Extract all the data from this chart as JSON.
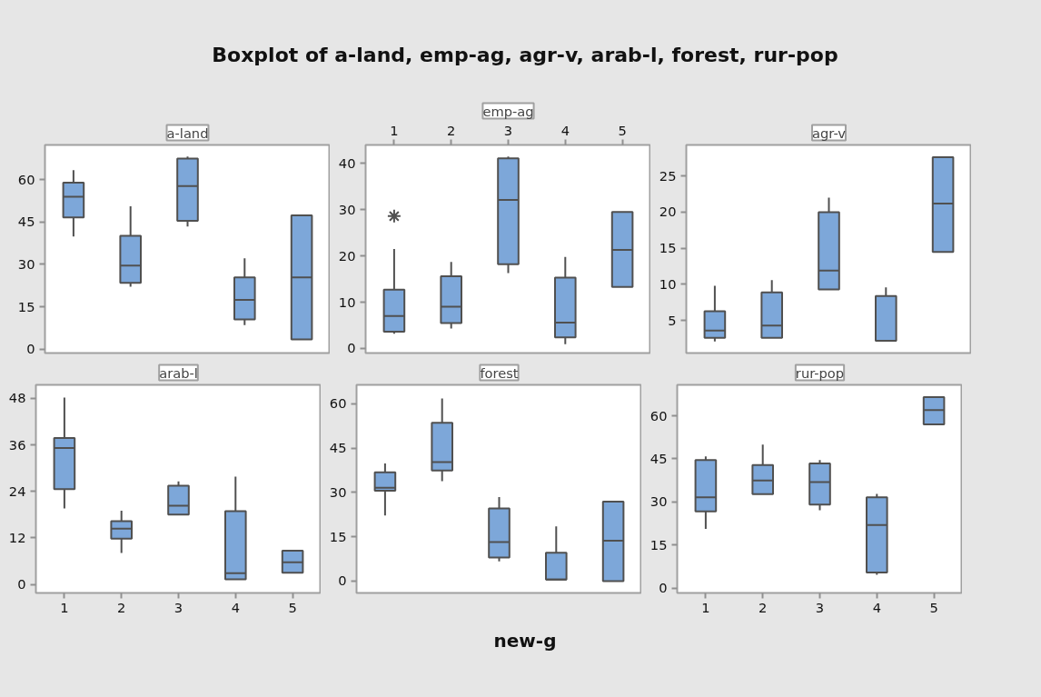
{
  "chart_data": [
    {
      "type": "box",
      "title": "a-land",
      "annotations": [
        "Boxplot of a-land, emp-ag, agr-v, arab-l, forest, rur-pop"
      ],
      "categories": [
        "1",
        "2",
        "3",
        "4",
        "5"
      ],
      "ylim": [
        -1.3,
        72.2
      ],
      "yticks": [
        0,
        15,
        30,
        45,
        60
      ],
      "tick_labels": "y",
      "color": "#7da7d9",
      "boxes": [
        {
          "low": 39.9,
          "q1": 46.6,
          "median": 53.9,
          "q3": 58.9,
          "high": 63.3
        },
        {
          "low": 22.1,
          "q1": 23.5,
          "median": 29.6,
          "q3": 40.1,
          "high": 50.5
        },
        {
          "low": 43.4,
          "q1": 45.4,
          "median": 57.7,
          "q3": 67.4,
          "high": 68.1
        },
        {
          "low": 8.6,
          "q1": 10.6,
          "median": 17.5,
          "q3": 25.4,
          "high": 32.2
        },
        {
          "low": 3.5,
          "q1": 3.5,
          "median": 25.4,
          "q3": 47.3,
          "high": 47.3
        }
      ]
    },
    {
      "type": "box",
      "title": "emp-ag",
      "categories": [
        "1",
        "2",
        "3",
        "4",
        "5"
      ],
      "ylim": [
        -1.0,
        44.0
      ],
      "yticks": [
        0,
        10,
        20,
        30,
        40
      ],
      "tick_labels": [
        "x2",
        "y"
      ],
      "color": "#7da7d9",
      "boxes": [
        {
          "low": 3.2,
          "q1": 3.6,
          "median": 7.0,
          "q3": 12.7,
          "high": 21.5,
          "outliers": [
            28.6
          ]
        },
        {
          "low": 4.3,
          "q1": 5.5,
          "median": 9.0,
          "q3": 15.6,
          "high": 18.7
        },
        {
          "low": 16.3,
          "q1": 18.2,
          "median": 32.1,
          "q3": 41.1,
          "high": 41.5
        },
        {
          "low": 0.9,
          "q1": 2.4,
          "median": 5.6,
          "q3": 15.3,
          "high": 19.8
        },
        {
          "low": 13.3,
          "q1": 13.3,
          "median": 21.3,
          "q3": 29.5,
          "high": 29.5
        }
      ]
    },
    {
      "type": "box",
      "title": "agr-v",
      "categories": [
        "1",
        "2",
        "3",
        "4",
        "5"
      ],
      "ylim": [
        0.5,
        29.3
      ],
      "yticks": [
        5,
        10,
        15,
        20,
        25
      ],
      "tick_labels": "y",
      "color": "#7da7d9",
      "boxes": [
        {
          "low": 2.1,
          "q1": 2.6,
          "median": 3.6,
          "q3": 6.3,
          "high": 9.8
        },
        {
          "low": 2.6,
          "q1": 2.6,
          "median": 4.3,
          "q3": 8.9,
          "high": 10.6
        },
        {
          "low": 9.3,
          "q1": 9.3,
          "median": 11.9,
          "q3": 20.0,
          "high": 22.0
        },
        {
          "low": 2.2,
          "q1": 2.2,
          "median": 2.2,
          "q3": 8.4,
          "high": 9.6
        },
        {
          "low": 14.5,
          "q1": 14.5,
          "median": 21.2,
          "q3": 27.6,
          "high": 27.6
        }
      ]
    },
    {
      "type": "box",
      "title": "arab-l",
      "categories": [
        "1",
        "2",
        "3",
        "4",
        "5"
      ],
      "ylim": [
        -2.2,
        51.5
      ],
      "yticks": [
        0,
        12,
        24,
        36,
        48
      ],
      "color": "#7da7d9",
      "boxes": [
        {
          "low": 19.6,
          "q1": 24.6,
          "median": 35.2,
          "q3": 37.8,
          "high": 48.2
        },
        {
          "low": 8.1,
          "q1": 11.8,
          "median": 14.4,
          "q3": 16.3,
          "high": 19.0
        },
        {
          "low": 18.0,
          "q1": 18.0,
          "median": 20.3,
          "q3": 25.5,
          "high": 26.6
        },
        {
          "low": 1.3,
          "q1": 1.3,
          "median": 2.9,
          "q3": 18.9,
          "high": 27.8
        },
        {
          "low": 3.0,
          "q1": 3.0,
          "median": 5.7,
          "q3": 8.7,
          "high": 8.7
        }
      ]
    },
    {
      "type": "box",
      "title": "forest",
      "xlabel": "new-g",
      "categories": [
        "1",
        "2",
        "3",
        "4",
        "5"
      ],
      "ylim": [
        -4.0,
        66.4
      ],
      "yticks": [
        0,
        15,
        30,
        45,
        60
      ],
      "tick_labels": "y",
      "color": "#7da7d9",
      "boxes": [
        {
          "low": 22.2,
          "q1": 30.6,
          "median": 31.6,
          "q3": 36.8,
          "high": 39.8
        },
        {
          "low": 33.8,
          "q1": 37.4,
          "median": 40.3,
          "q3": 53.6,
          "high": 61.8
        },
        {
          "low": 6.7,
          "q1": 8.0,
          "median": 13.2,
          "q3": 24.6,
          "high": 28.4
        },
        {
          "low": 0.5,
          "q1": 0.5,
          "median": 0.5,
          "q3": 9.6,
          "high": 18.5
        },
        {
          "low": 0,
          "q1": 0,
          "median": 13.7,
          "q3": 26.9,
          "high": 26.9
        }
      ]
    },
    {
      "type": "box",
      "title": "rur-pop",
      "categories": [
        "1",
        "2",
        "3",
        "4",
        "5"
      ],
      "ylim": [
        -1.7,
        70.8
      ],
      "yticks": [
        0,
        15,
        30,
        45,
        60
      ],
      "color": "#7da7d9",
      "boxes": [
        {
          "low": 20.6,
          "q1": 26.7,
          "median": 31.6,
          "q3": 44.6,
          "high": 45.9
        },
        {
          "low": 32.7,
          "q1": 32.7,
          "median": 37.5,
          "q3": 42.9,
          "high": 50.0
        },
        {
          "low": 27.1,
          "q1": 29.1,
          "median": 36.9,
          "q3": 43.4,
          "high": 44.6
        },
        {
          "low": 4.6,
          "q1": 5.4,
          "median": 22.0,
          "q3": 31.6,
          "high": 32.8
        },
        {
          "low": 57.0,
          "q1": 57.0,
          "median": 62.0,
          "q3": 66.5,
          "high": 66.5
        }
      ]
    }
  ]
}
